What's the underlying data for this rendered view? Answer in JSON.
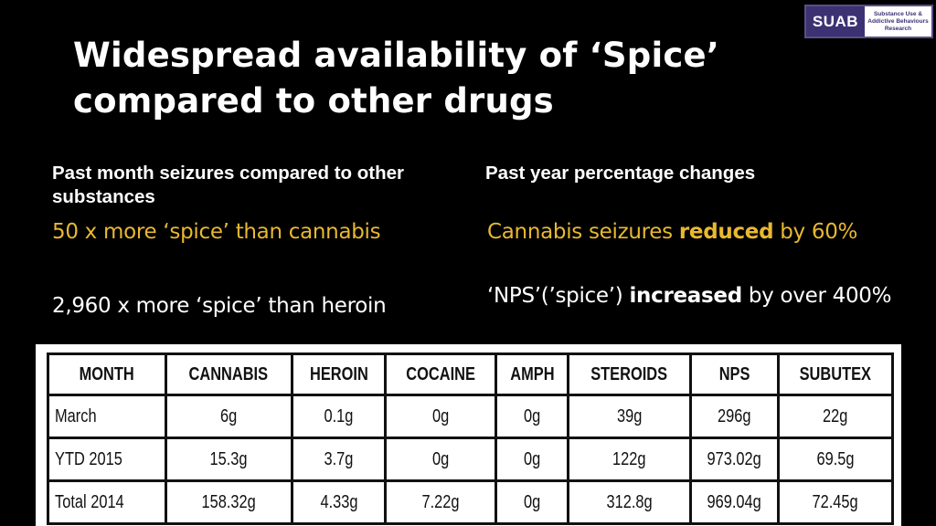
{
  "logo": {
    "mark": "SUAB",
    "text": "Substance Use & Addictive Behaviours Research"
  },
  "title": "Widespread availability of ‘Spice’ compared to other drugs",
  "left": {
    "heading": "Past month seizures compared to other substances",
    "line1": "50 x more ‘spice’ than cannabis",
    "line2": "2,960 x more ‘spice’ than heroin"
  },
  "right": {
    "heading": "Past year percentage changes",
    "line1_pre": "Cannabis seizures ",
    "line1_bold": "reduced",
    "line1_post": " by 60%",
    "line2_pre": "‘NPS’(’spice’) ",
    "line2_bold": "increased",
    "line2_post": " by over 400%"
  },
  "table": {
    "headers": [
      "MONTH",
      "CANNABIS",
      "HEROIN",
      "COCAINE",
      "AMPH",
      "STEROIDS",
      "NPS",
      "SUBUTEX"
    ],
    "rows": [
      [
        "March",
        "6g",
        "0.1g",
        "0g",
        "0g",
        "39g",
        "296g",
        "22g"
      ],
      [
        "YTD 2015",
        "15.3g",
        "3.7g",
        "0g",
        "0g",
        "122g",
        "973.02g",
        "69.5g"
      ],
      [
        "Total 2014",
        "158.32g",
        "4.33g",
        "7.22g",
        "0g",
        "312.8g",
        "969.04g",
        "72.45g"
      ]
    ]
  },
  "colors": {
    "background": "#000000",
    "accent": "#e8b830",
    "logo": "#3c3273"
  }
}
